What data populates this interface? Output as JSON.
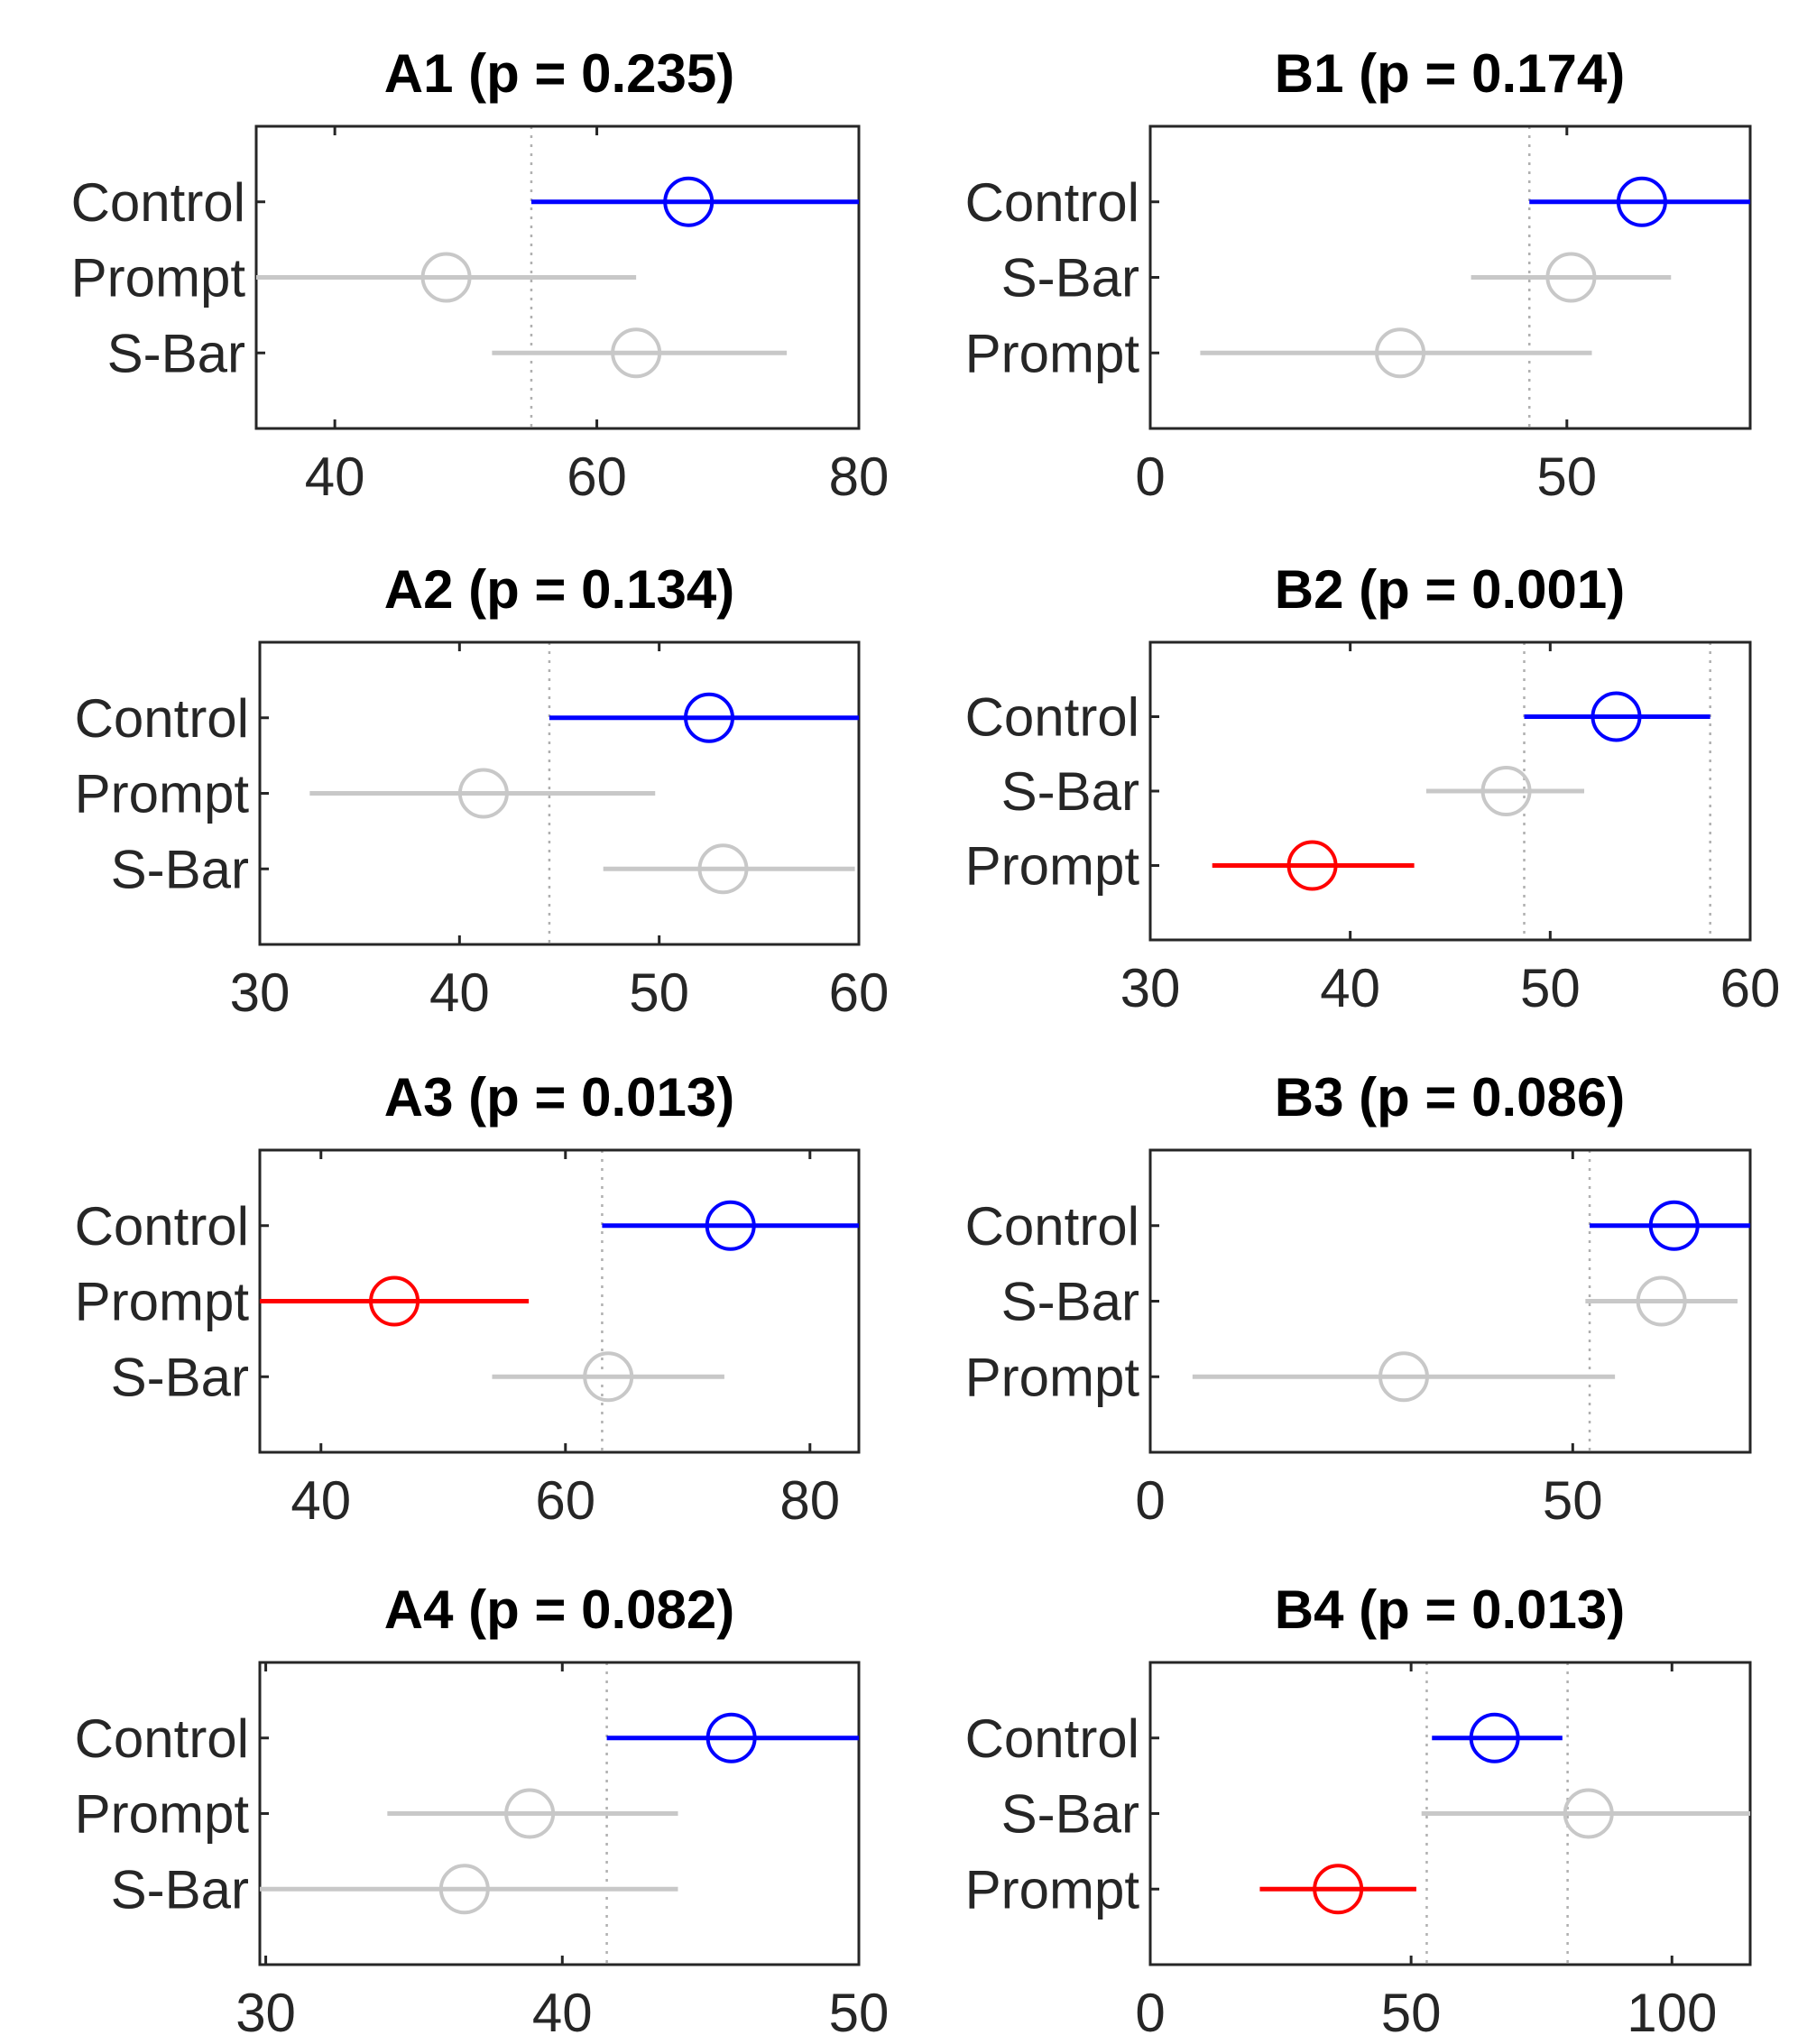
{
  "chart_data": [
    {
      "id": "A1",
      "type": "scatter",
      "title": "A1 (p = 0.235)",
      "xlim": [
        34,
        80
      ],
      "xticks": [
        40,
        60,
        80
      ],
      "xtick_labels": [
        "40",
        "60",
        "80"
      ],
      "guides": [
        55,
        80
      ],
      "rows": [
        {
          "label": "Control",
          "mean": 67,
          "lo": 55,
          "hi": 80,
          "color": "#0000ff"
        },
        {
          "label": "Prompt",
          "mean": 48.5,
          "lo": 34,
          "hi": 63,
          "color": "#c8c8c8"
        },
        {
          "label": "S-Bar",
          "mean": 63,
          "lo": 52,
          "hi": 74.5,
          "color": "#c8c8c8"
        }
      ]
    },
    {
      "id": "B1",
      "type": "scatter",
      "title": "B1 (p = 0.174)",
      "xlim": [
        0,
        72
      ],
      "xticks": [
        0,
        50
      ],
      "xtick_labels": [
        "0",
        "50"
      ],
      "guides": [
        45.5,
        72
      ],
      "rows": [
        {
          "label": "Control",
          "mean": 59,
          "lo": 45.5,
          "hi": 72,
          "color": "#0000ff"
        },
        {
          "label": "S-Bar",
          "mean": 50.5,
          "lo": 38.5,
          "hi": 62.5,
          "color": "#c8c8c8"
        },
        {
          "label": "Prompt",
          "mean": 30,
          "lo": 6,
          "hi": 53,
          "color": "#c8c8c8"
        }
      ]
    },
    {
      "id": "A2",
      "type": "scatter",
      "title": "A2 (p = 0.134)",
      "xlim": [
        30,
        60
      ],
      "xticks": [
        30,
        40,
        50,
        60
      ],
      "xtick_labels": [
        "30",
        "40",
        "50",
        "60"
      ],
      "guides": [
        44.5,
        60
      ],
      "rows": [
        {
          "label": "Control",
          "mean": 52.5,
          "lo": 44.5,
          "hi": 60,
          "color": "#0000ff"
        },
        {
          "label": "Prompt",
          "mean": 41.2,
          "lo": 32.5,
          "hi": 49.8,
          "color": "#c8c8c8"
        },
        {
          "label": "S-Bar",
          "mean": 53.2,
          "lo": 47.2,
          "hi": 59.8,
          "color": "#c8c8c8"
        }
      ]
    },
    {
      "id": "B2",
      "type": "scatter",
      "title": "B2 (p = 0.001)",
      "xlim": [
        30,
        60
      ],
      "xticks": [
        30,
        40,
        50,
        60
      ],
      "xtick_labels": [
        "30",
        "40",
        "50",
        "60"
      ],
      "guides": [
        48.7,
        58
      ],
      "rows": [
        {
          "label": "Control",
          "mean": 53.3,
          "lo": 48.7,
          "hi": 58,
          "color": "#0000ff"
        },
        {
          "label": "S-Bar",
          "mean": 47.8,
          "lo": 43.8,
          "hi": 51.7,
          "color": "#c8c8c8"
        },
        {
          "label": "Prompt",
          "mean": 38.1,
          "lo": 33.1,
          "hi": 43.2,
          "color": "#ff0000"
        }
      ]
    },
    {
      "id": "A3",
      "type": "scatter",
      "title": "A3 (p = 0.013)",
      "xlim": [
        35,
        84
      ],
      "xticks": [
        40,
        60,
        80
      ],
      "xtick_labels": [
        "40",
        "60",
        "80"
      ],
      "guides": [
        63,
        84
      ],
      "rows": [
        {
          "label": "Control",
          "mean": 73.5,
          "lo": 63,
          "hi": 84,
          "color": "#0000ff"
        },
        {
          "label": "Prompt",
          "mean": 46,
          "lo": 35,
          "hi": 57,
          "color": "#ff0000"
        },
        {
          "label": "S-Bar",
          "mean": 63.5,
          "lo": 54,
          "hi": 73,
          "color": "#c8c8c8"
        }
      ]
    },
    {
      "id": "B3",
      "type": "scatter",
      "title": "B3 (p = 0.086)",
      "xlim": [
        0,
        71
      ],
      "xticks": [
        0,
        50
      ],
      "xtick_labels": [
        "0",
        "50"
      ],
      "guides": [
        52,
        71
      ],
      "rows": [
        {
          "label": "Control",
          "mean": 62,
          "lo": 52,
          "hi": 71,
          "color": "#0000ff"
        },
        {
          "label": "S-Bar",
          "mean": 60.5,
          "lo": 51.5,
          "hi": 69.5,
          "color": "#c8c8c8"
        },
        {
          "label": "Prompt",
          "mean": 30,
          "lo": 5,
          "hi": 55,
          "color": "#c8c8c8"
        }
      ]
    },
    {
      "id": "A4",
      "type": "scatter",
      "title": "A4 (p = 0.082)",
      "xlim": [
        29.8,
        50
      ],
      "xticks": [
        30,
        40,
        50
      ],
      "xtick_labels": [
        "30",
        "40",
        "50"
      ],
      "guides": [
        41.5,
        50
      ],
      "rows": [
        {
          "label": "Control",
          "mean": 45.7,
          "lo": 41.5,
          "hi": 50,
          "color": "#0000ff"
        },
        {
          "label": "Prompt",
          "mean": 38.9,
          "lo": 34.1,
          "hi": 43.9,
          "color": "#c8c8c8"
        },
        {
          "label": "S-Bar",
          "mean": 36.7,
          "lo": 29.8,
          "hi": 43.9,
          "color": "#c8c8c8"
        }
      ]
    },
    {
      "id": "B4",
      "type": "scatter",
      "title": "B4 (p = 0.013)",
      "xlim": [
        0,
        115
      ],
      "xticks": [
        0,
        50,
        100
      ],
      "xtick_labels": [
        "0",
        "50",
        "100"
      ],
      "guides": [
        53,
        80
      ],
      "rows": [
        {
          "label": "Control",
          "mean": 66,
          "lo": 54,
          "hi": 79,
          "color": "#0000ff"
        },
        {
          "label": "S-Bar",
          "mean": 84,
          "lo": 52,
          "hi": 115,
          "color": "#c8c8c8"
        },
        {
          "label": "Prompt",
          "mean": 36,
          "lo": 21,
          "hi": 51,
          "color": "#ff0000"
        }
      ]
    }
  ]
}
